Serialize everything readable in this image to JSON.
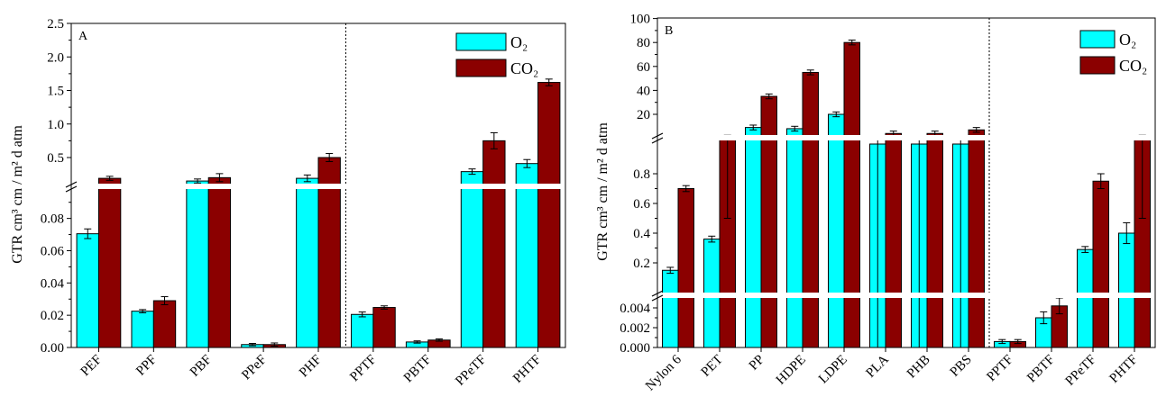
{
  "chart_data": [
    {
      "type": "bar",
      "panel_label": "A",
      "ylabel": "GTR   cm³ cm / m² d atm",
      "categories": [
        "PEF",
        "PPF",
        "PBF",
        "PPeF",
        "PHF",
        "PPTF",
        "PBTF",
        "PPeTF",
        "PHTF"
      ],
      "series": [
        {
          "name": "O₂",
          "color": "#00ffff",
          "values": [
            0.0705,
            0.0225,
            0.15,
            0.0018,
            0.19,
            0.0205,
            0.0034,
            0.29,
            0.41
          ]
        },
        {
          "name": "CO₂",
          "color": "#8b0000",
          "values": [
            0.19,
            0.029,
            0.2,
            0.0018,
            0.5,
            0.0248,
            0.0046,
            0.75,
            1.62
          ]
        }
      ],
      "errors": [
        [
          0.003,
          0.001,
          0.03,
          0.0007,
          0.05,
          0.0015,
          0.0007,
          0.04,
          0.06
        ],
        [
          0.03,
          0.0025,
          0.06,
          0.001,
          0.06,
          0.001,
          0.0007,
          0.12,
          0.05
        ]
      ],
      "y_axis_break": true,
      "lower_segment": {
        "ylim": [
          0,
          0.1
        ],
        "ticks": [
          "0.00",
          "0.02",
          "0.04",
          "0.06",
          "0.08"
        ]
      },
      "upper_segment": {
        "ylim": [
          0.1,
          2.5
        ],
        "ticks": [
          "0.5",
          "1.0",
          "1.5",
          "2.0",
          "2.5"
        ]
      },
      "separator_after": "PHF",
      "legend_placement": "top-right",
      "grid": false
    },
    {
      "type": "bar",
      "panel_label": "B",
      "ylabel": "GTR   cm³ cm / m² d atm",
      "categories": [
        "Nylon 6",
        "PET",
        "PP",
        "HDPE",
        "LDPE",
        "PLA",
        "PHB",
        "PBS",
        "PPTF",
        "PBTF",
        "PPeTF",
        "PHTF"
      ],
      "series": [
        {
          "name": "O₂",
          "color": "#00ffff",
          "values": [
            0.15,
            0.36,
            9,
            8,
            20,
            1,
            1,
            1,
            0.0006,
            0.003,
            0.29,
            0.4
          ]
        },
        {
          "name": "CO₂",
          "color": "#8b0000",
          "values": [
            0.7,
            1.5,
            35,
            55,
            80,
            4,
            4,
            7,
            0.0006,
            0.0042,
            0.75,
            1.5
          ]
        }
      ],
      "errors": [
        [
          0.02,
          0.02,
          2,
          2,
          2,
          1,
          1,
          1,
          0.0002,
          0.0006,
          0.02,
          0.07
        ],
        [
          0.02,
          1,
          2,
          2,
          2,
          2,
          2,
          2,
          0.0002,
          0.0008,
          0.05,
          1
        ]
      ],
      "y_axis_break": true,
      "lower_segment": {
        "ylim": [
          0,
          0.005
        ],
        "ticks": [
          "0.000",
          "0.002",
          "0.004"
        ]
      },
      "middle_segment": {
        "ylim": [
          0.005,
          1.0
        ],
        "ticks": [
          "0.2",
          "0.4",
          "0.6",
          "0.8"
        ]
      },
      "upper_segment": {
        "ylim": [
          1.0,
          100
        ],
        "ticks": [
          "20",
          "40",
          "60",
          "80",
          "100"
        ]
      },
      "separator_after": "PBS",
      "legend_placement": "top-right",
      "grid": false
    }
  ]
}
